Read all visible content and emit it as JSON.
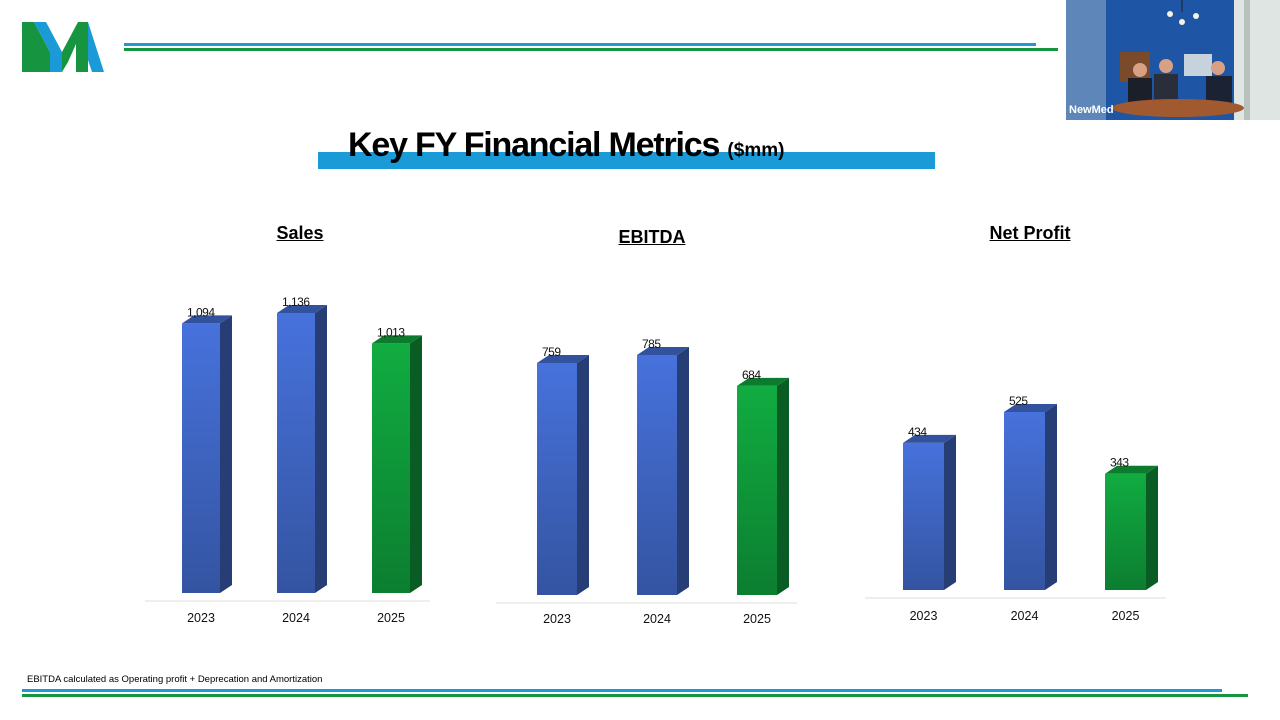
{
  "slide": {
    "title": "Key FY Financial Metrics",
    "title_unit": "($mm)",
    "footnote": "EBITDA calculated as Operating profit + Deprecation and Amortization",
    "brand_colors": {
      "blue": "#1a9ad6",
      "green": "#17943f"
    }
  },
  "video": {
    "label": "NewMed"
  },
  "chart_data": [
    {
      "type": "bar",
      "title": "Sales",
      "categories": [
        "2023",
        "2024",
        "2025"
      ],
      "values": [
        1094,
        1136,
        1013
      ],
      "value_labels": [
        "1,094",
        "1,136",
        "1,013"
      ],
      "colors": [
        "#3f66c4",
        "#3f66c4",
        "#0f9a3a"
      ],
      "ylim": [
        0,
        1136
      ]
    },
    {
      "type": "bar",
      "title": "EBITDA",
      "categories": [
        "2023",
        "2024",
        "2025"
      ],
      "values": [
        759,
        785,
        684
      ],
      "value_labels": [
        "759",
        "785",
        "684"
      ],
      "colors": [
        "#3f66c4",
        "#3f66c4",
        "#0f9a3a"
      ],
      "ylim": [
        0,
        785
      ]
    },
    {
      "type": "bar",
      "title": "Net Profit",
      "categories": [
        "2023",
        "2024",
        "2025"
      ],
      "values": [
        434,
        525,
        343
      ],
      "value_labels": [
        "434",
        "525",
        "343"
      ],
      "colors": [
        "#3f66c4",
        "#3f66c4",
        "#0f9a3a"
      ],
      "ylim": [
        0,
        525
      ]
    }
  ]
}
